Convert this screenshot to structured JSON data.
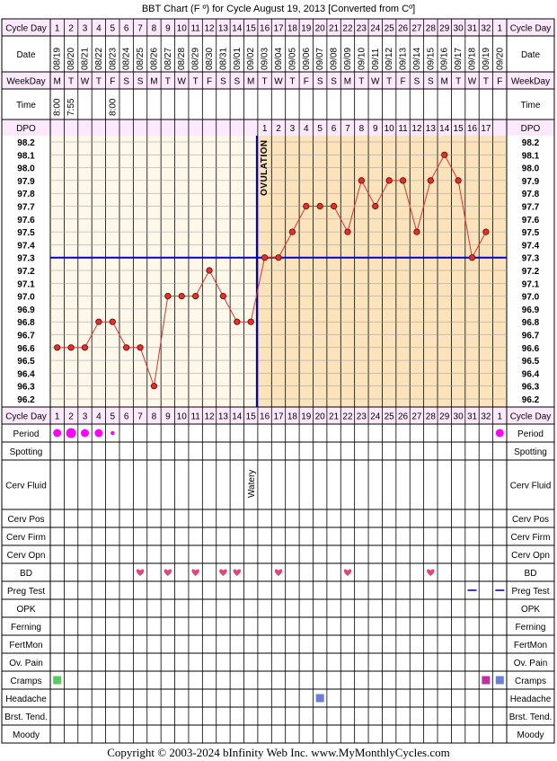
{
  "title": "BBT Chart (F º) for Cycle August 19, 2013  [Converted from Cº]",
  "footer": "Copyright © 2003-2024 bInfinity Web Inc.     www.MyMonthlyCycles.com",
  "ovulation_label": "OVULATION",
  "row_labels": {
    "cycle_day": "Cycle Day",
    "date": "Date",
    "weekday": "WeekDay",
    "time": "Time",
    "dpo": "DPO",
    "period": "Period",
    "spotting": "Spotting",
    "cerv_fluid": "Cerv Fluid",
    "cerv_pos": "Cerv Pos",
    "cerv_firm": "Cerv Firm",
    "cerv_opn": "Cerv Opn",
    "bd": "BD",
    "preg_test": "Preg Test",
    "opk": "OPK",
    "ferning": "Ferning",
    "fertmon": "FertMon",
    "ov_pain": "Ov. Pain",
    "cramps": "Cramps",
    "headache": "Headache",
    "brst_tend": "Brst. Tend.",
    "moody": "Moody"
  },
  "cycle_days": [
    "1",
    "2",
    "3",
    "4",
    "5",
    "6",
    "7",
    "8",
    "9",
    "10",
    "11",
    "12",
    "13",
    "14",
    "15",
    "16",
    "17",
    "18",
    "19",
    "20",
    "21",
    "22",
    "23",
    "24",
    "25",
    "26",
    "27",
    "28",
    "29",
    "30",
    "31",
    "32",
    "1"
  ],
  "dates": [
    "08/19",
    "08/20",
    "08/21",
    "08/22",
    "08/23",
    "08/24",
    "08/25",
    "08/26",
    "08/27",
    "08/28",
    "08/29",
    "08/30",
    "08/31",
    "09/01",
    "09/02",
    "09/03",
    "09/04",
    "09/05",
    "09/06",
    "09/07",
    "09/08",
    "09/09",
    "09/10",
    "09/11",
    "09/12",
    "09/13",
    "09/14",
    "09/15",
    "09/16",
    "09/17",
    "09/18",
    "09/19",
    "09/20"
  ],
  "weekdays": [
    "M",
    "T",
    "W",
    "T",
    "F",
    "S",
    "S",
    "M",
    "T",
    "W",
    "T",
    "F",
    "S",
    "S",
    "M",
    "T",
    "W",
    "T",
    "F",
    "S",
    "S",
    "M",
    "T",
    "W",
    "T",
    "F",
    "S",
    "S",
    "M",
    "T",
    "W",
    "T",
    "F"
  ],
  "times": [
    "8:00",
    "7:55",
    "",
    "",
    "8:00",
    "",
    "",
    "",
    "",
    "",
    "",
    "",
    "",
    "",
    "",
    "",
    "",
    "",
    "",
    "",
    "",
    "",
    "",
    "",
    "",
    "",
    "",
    "",
    "",
    "",
    "",
    "",
    ""
  ],
  "dpo": [
    "",
    "",
    "",
    "",
    "",
    "",
    "",
    "",
    "",
    "",
    "",
    "",
    "",
    "",
    "",
    "1",
    "2",
    "3",
    "4",
    "5",
    "6",
    "7",
    "8",
    "9",
    "10",
    "11",
    "12",
    "13",
    "14",
    "15",
    "16",
    "17",
    ""
  ],
  "cerv_fluid": [
    "",
    "",
    "",
    "",
    "",
    "",
    "",
    "",
    "",
    "",
    "",
    "",
    "",
    "",
    "Watery",
    "",
    "",
    "",
    "",
    "",
    "",
    "",
    "",
    "",
    "",
    "",
    "",
    "",
    "",
    "",
    "",
    "",
    ""
  ],
  "colors": {
    "line": "#e0312b",
    "point": "#e0312b",
    "coverline": "#0000cc",
    "follicular_bg": "#fdf8ea",
    "luteal_bg": "#fbe3bc",
    "grid": "#999999",
    "header_bg": "#fde9fd",
    "period": "#ff00ff",
    "bd": "#e0457b",
    "preg_test": "#3b3bb0",
    "cramps_day1": "#5ac85a",
    "cramps_day31": "#c030a0",
    "cramps_day32": "#6b7fd6",
    "headache": "#6b7fd6"
  },
  "chart_data": {
    "type": "line",
    "title": "BBT Chart (F º) for Cycle August 19, 2013  [Converted from Cº]",
    "x": [
      1,
      2,
      3,
      4,
      5,
      6,
      7,
      8,
      9,
      10,
      11,
      12,
      13,
      14,
      15,
      16,
      17,
      18,
      19,
      20,
      21,
      22,
      23,
      24,
      25,
      26,
      27,
      28,
      29,
      30,
      31,
      32,
      33
    ],
    "series": [
      {
        "values": [
          96.6,
          96.6,
          96.6,
          96.8,
          96.8,
          96.6,
          96.6,
          96.3,
          97.0,
          97.0,
          97.0,
          97.2,
          97.0,
          96.8,
          96.8,
          97.3,
          97.3,
          97.5,
          97.7,
          97.7,
          97.7,
          97.5,
          97.9,
          97.7,
          97.9,
          97.9,
          97.5,
          97.9,
          98.1,
          97.9,
          97.3,
          97.5,
          null
        ]
      }
    ],
    "yticks": [
      "98.2",
      "98.1",
      "98.0",
      "97.9",
      "97.8",
      "97.7",
      "97.6",
      "97.5",
      "97.4",
      "97.3",
      "97.2",
      "97.1",
      "97.0",
      "96.9",
      "96.8",
      "96.7",
      "96.6",
      "96.5",
      "96.4",
      "96.3",
      "96.2"
    ],
    "ylim": [
      96.2,
      98.2
    ],
    "coverline": 97.3,
    "ovulation_after_column": 15,
    "period": [
      "large",
      "large",
      "large",
      "large",
      "small",
      "",
      "",
      "",
      "",
      "",
      "",
      "",
      "",
      "",
      "",
      "",
      "",
      "",
      "",
      "",
      "",
      "",
      "",
      "",
      "",
      "",
      "",
      "",
      "",
      "",
      "",
      "",
      "large"
    ],
    "bd_days": [
      7,
      9,
      11,
      13,
      14,
      17,
      22,
      28
    ],
    "preg_test_days": [
      31,
      33
    ],
    "cramps_days": [
      1,
      32,
      33
    ],
    "headache_days": [
      20
    ]
  }
}
